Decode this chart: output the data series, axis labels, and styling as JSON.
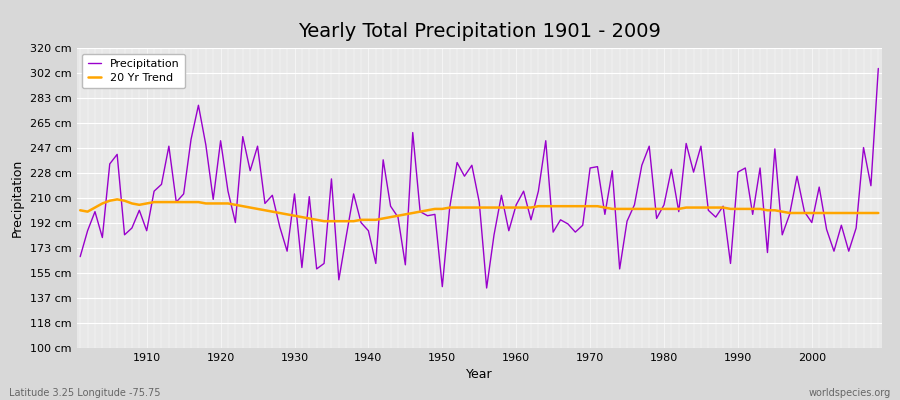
{
  "title": "Yearly Total Precipitation 1901 - 2009",
  "xlabel": "Year",
  "ylabel": "Precipitation",
  "subtitle": "Latitude 3.25 Longitude -75.75",
  "watermark": "worldspecies.org",
  "years": [
    1901,
    1902,
    1903,
    1904,
    1905,
    1906,
    1907,
    1908,
    1909,
    1910,
    1911,
    1912,
    1913,
    1914,
    1915,
    1916,
    1917,
    1918,
    1919,
    1920,
    1921,
    1922,
    1923,
    1924,
    1925,
    1926,
    1927,
    1928,
    1929,
    1930,
    1931,
    1932,
    1933,
    1934,
    1935,
    1936,
    1937,
    1938,
    1939,
    1940,
    1941,
    1942,
    1943,
    1944,
    1945,
    1946,
    1947,
    1948,
    1949,
    1950,
    1951,
    1952,
    1953,
    1954,
    1955,
    1956,
    1957,
    1958,
    1959,
    1960,
    1961,
    1962,
    1963,
    1964,
    1965,
    1966,
    1967,
    1968,
    1969,
    1970,
    1971,
    1972,
    1973,
    1974,
    1975,
    1976,
    1977,
    1978,
    1979,
    1980,
    1981,
    1982,
    1983,
    1984,
    1985,
    1986,
    1987,
    1988,
    1989,
    1990,
    1991,
    1992,
    1993,
    1994,
    1995,
    1996,
    1997,
    1998,
    1999,
    2000,
    2001,
    2002,
    2003,
    2004,
    2005,
    2006,
    2007,
    2008,
    2009
  ],
  "precip": [
    167,
    186,
    200,
    181,
    235,
    242,
    183,
    188,
    201,
    186,
    215,
    220,
    248,
    207,
    213,
    253,
    278,
    249,
    209,
    252,
    215,
    192,
    255,
    230,
    248,
    206,
    212,
    189,
    171,
    213,
    159,
    211,
    158,
    162,
    224,
    150,
    182,
    213,
    192,
    186,
    162,
    238,
    204,
    196,
    161,
    258,
    200,
    197,
    198,
    145,
    203,
    236,
    226,
    234,
    207,
    144,
    183,
    212,
    186,
    205,
    215,
    194,
    215,
    252,
    185,
    194,
    191,
    185,
    190,
    232,
    233,
    198,
    230,
    158,
    193,
    205,
    234,
    248,
    195,
    205,
    231,
    200,
    250,
    229,
    248,
    201,
    196,
    204,
    162,
    229,
    232,
    198,
    232,
    170,
    246,
    183,
    198,
    226,
    200,
    192,
    218,
    187,
    171,
    190,
    171,
    188,
    247,
    219,
    305
  ],
  "trend": [
    201,
    200,
    203,
    206,
    208,
    209,
    208,
    206,
    205,
    206,
    207,
    207,
    207,
    207,
    207,
    207,
    207,
    206,
    206,
    206,
    206,
    205,
    204,
    203,
    202,
    201,
    200,
    199,
    198,
    197,
    196,
    195,
    194,
    193,
    193,
    193,
    193,
    193,
    194,
    194,
    194,
    195,
    196,
    197,
    198,
    199,
    200,
    201,
    202,
    202,
    203,
    203,
    203,
    203,
    203,
    203,
    203,
    203,
    203,
    203,
    203,
    203,
    204,
    204,
    204,
    204,
    204,
    204,
    204,
    204,
    204,
    203,
    202,
    202,
    202,
    202,
    202,
    202,
    202,
    202,
    202,
    202,
    203,
    203,
    203,
    203,
    203,
    203,
    202,
    202,
    202,
    202,
    202,
    201,
    201,
    200,
    199,
    199,
    199,
    199,
    199,
    199,
    199,
    199,
    199,
    199,
    199,
    199,
    199
  ],
  "ylim": [
    100,
    320
  ],
  "yticks": [
    100,
    118,
    137,
    155,
    173,
    192,
    210,
    228,
    247,
    265,
    283,
    302,
    320
  ],
  "ytick_labels": [
    "100 cm",
    "118 cm",
    "137 cm",
    "155 cm",
    "173 cm",
    "192 cm",
    "210 cm",
    "228 cm",
    "247 cm",
    "265 cm",
    "283 cm",
    "302 cm",
    "320 cm"
  ],
  "xticks": [
    1910,
    1920,
    1930,
    1940,
    1950,
    1960,
    1970,
    1980,
    1990,
    2000
  ],
  "precip_color": "#9900cc",
  "trend_color": "#ffa500",
  "bg_color": "#d8d8d8",
  "plot_bg_color": "#e8e8e8",
  "grid_color": "#ffffff",
  "legend_labels": [
    "Precipitation",
    "20 Yr Trend"
  ],
  "title_fontsize": 14,
  "axis_fontsize": 9,
  "tick_fontsize": 8
}
